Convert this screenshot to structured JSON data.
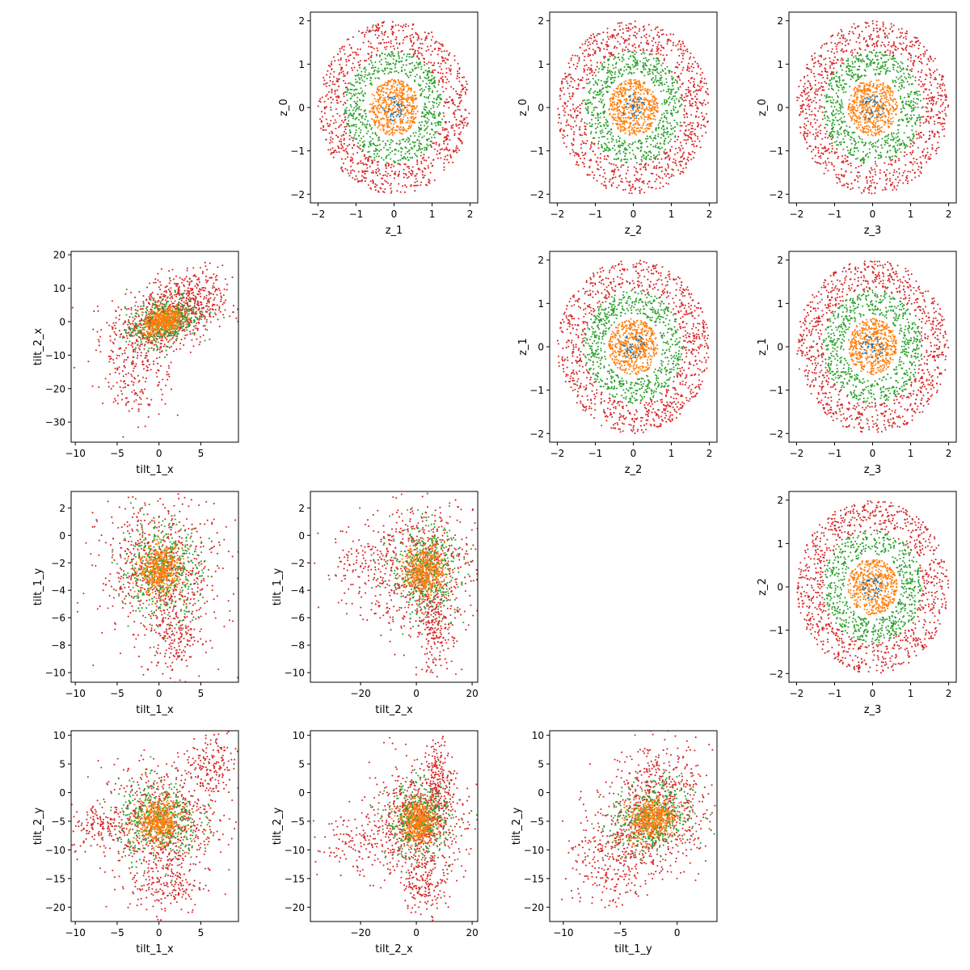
{
  "colors": {
    "red": "#d62728",
    "green": "#2ca02c",
    "orange": "#ff7f0e",
    "blue": "#1f77b4",
    "axes": "#000000",
    "background": "#ffffff"
  },
  "chart_data": [
    {
      "id": "p01",
      "type": "scatter",
      "row": 0,
      "col": 1,
      "xlabel": "z_1",
      "ylabel": "z_0",
      "xlim": [
        -2.2,
        2.2
      ],
      "ylim": [
        -2.2,
        2.2
      ],
      "xticks": [
        -2,
        -1,
        0,
        1,
        2
      ],
      "yticks": [
        -2,
        -1,
        0,
        1,
        2
      ],
      "gen": {
        "kind": "rings",
        "radii": [
          [
            1.3,
            2.0,
            900
          ],
          [
            0.75,
            1.3,
            650
          ],
          [
            0,
            0.65,
            500
          ],
          [
            0,
            0.3,
            40
          ]
        ]
      },
      "grid": false,
      "legend": "none"
    },
    {
      "id": "p02",
      "type": "scatter",
      "row": 0,
      "col": 2,
      "xlabel": "z_2",
      "ylabel": "z_0",
      "xlim": [
        -2.2,
        2.2
      ],
      "ylim": [
        -2.2,
        2.2
      ],
      "xticks": [
        -2,
        -1,
        0,
        1,
        2
      ],
      "yticks": [
        -2,
        -1,
        0,
        1,
        2
      ],
      "gen": {
        "kind": "rings",
        "radii": [
          [
            1.3,
            2.0,
            900
          ],
          [
            0.75,
            1.3,
            650
          ],
          [
            0,
            0.65,
            500
          ],
          [
            0,
            0.3,
            40
          ]
        ]
      },
      "grid": false,
      "legend": "none"
    },
    {
      "id": "p03",
      "type": "scatter",
      "row": 0,
      "col": 3,
      "xlabel": "z_3",
      "ylabel": "z_0",
      "xlim": [
        -2.2,
        2.2
      ],
      "ylim": [
        -2.2,
        2.2
      ],
      "xticks": [
        -2,
        -1,
        0,
        1,
        2
      ],
      "yticks": [
        -2,
        -1,
        0,
        1,
        2
      ],
      "gen": {
        "kind": "rings",
        "radii": [
          [
            1.3,
            2.0,
            900
          ],
          [
            0.75,
            1.3,
            650
          ],
          [
            0,
            0.65,
            500
          ],
          [
            0,
            0.3,
            40
          ]
        ]
      },
      "grid": false,
      "legend": "none"
    },
    {
      "id": "p12",
      "type": "scatter",
      "row": 1,
      "col": 2,
      "xlabel": "z_2",
      "ylabel": "z_1",
      "xlim": [
        -2.2,
        2.2
      ],
      "ylim": [
        -2.2,
        2.2
      ],
      "xticks": [
        -2,
        -1,
        0,
        1,
        2
      ],
      "yticks": [
        -2,
        -1,
        0,
        1,
        2
      ],
      "gen": {
        "kind": "rings",
        "radii": [
          [
            1.3,
            2.0,
            900
          ],
          [
            0.75,
            1.3,
            650
          ],
          [
            0,
            0.65,
            500
          ],
          [
            0,
            0.3,
            40
          ]
        ]
      },
      "grid": false,
      "legend": "none"
    },
    {
      "id": "p13",
      "type": "scatter",
      "row": 1,
      "col": 3,
      "xlabel": "z_3",
      "ylabel": "z_1",
      "xlim": [
        -2.2,
        2.2
      ],
      "ylim": [
        -2.2,
        2.2
      ],
      "xticks": [
        -2,
        -1,
        0,
        1,
        2
      ],
      "yticks": [
        -2,
        -1,
        0,
        1,
        2
      ],
      "gen": {
        "kind": "rings",
        "radii": [
          [
            1.3,
            2.0,
            900
          ],
          [
            0.75,
            1.3,
            650
          ],
          [
            0,
            0.65,
            500
          ],
          [
            0,
            0.3,
            40
          ]
        ]
      },
      "grid": false,
      "legend": "none"
    },
    {
      "id": "p23",
      "type": "scatter",
      "row": 2,
      "col": 3,
      "xlabel": "z_3",
      "ylabel": "z_2",
      "xlim": [
        -2.2,
        2.2
      ],
      "ylim": [
        -2.2,
        2.2
      ],
      "xticks": [
        -2,
        -1,
        0,
        1,
        2
      ],
      "yticks": [
        -2,
        -1,
        0,
        1,
        2
      ],
      "gen": {
        "kind": "rings",
        "radii": [
          [
            1.3,
            2.0,
            900
          ],
          [
            0.75,
            1.3,
            650
          ],
          [
            0,
            0.65,
            500
          ],
          [
            0,
            0.3,
            40
          ]
        ]
      },
      "grid": false,
      "legend": "none"
    },
    {
      "id": "p10",
      "type": "scatter",
      "row": 1,
      "col": 0,
      "xlabel": "tilt_1_x",
      "ylabel": "tilt_2_x",
      "xlim": [
        -10.5,
        9.5
      ],
      "ylim": [
        -36,
        21
      ],
      "xticks": [
        -10,
        -5,
        0,
        5
      ],
      "yticks": [
        -30,
        -20,
        -10,
        0,
        10,
        20
      ],
      "gen": {
        "kind": "blob",
        "center": [
          0.5,
          0
        ],
        "spread": [
          [
            3.2,
            5.0,
            600
          ],
          [
            2.2,
            3.5,
            450
          ],
          [
            1.2,
            2.0,
            450
          ]
        ],
        "skew": [
          [
            1.2,
            -2.4
          ],
          [
            0.9,
            -1.6
          ],
          [
            0.5,
            -0.6
          ]
        ],
        "tail": [
          [
            -2.5,
            -14,
            2.0,
            8,
            200
          ],
          [
            4,
            8,
            2.5,
            4,
            250
          ]
        ]
      },
      "grid": false,
      "legend": "none"
    },
    {
      "id": "p20",
      "type": "scatter",
      "row": 2,
      "col": 0,
      "xlabel": "tilt_1_x",
      "ylabel": "tilt_1_y",
      "xlim": [
        -10.5,
        9.5
      ],
      "ylim": [
        -10.7,
        3.2
      ],
      "xticks": [
        -10,
        -5,
        0,
        5
      ],
      "yticks": [
        -10,
        -8,
        -6,
        -4,
        -2,
        0,
        2
      ],
      "gen": {
        "kind": "blob",
        "center": [
          0.2,
          -2.5
        ],
        "spread": [
          [
            3.6,
            2.6,
            650
          ],
          [
            2.4,
            1.7,
            450
          ],
          [
            1.3,
            0.9,
            450
          ]
        ],
        "skew": [
          [
            0,
            0
          ],
          [
            0,
            0
          ],
          [
            0,
            0
          ]
        ],
        "tail": [
          [
            2,
            -7,
            1.6,
            1.6,
            200
          ]
        ]
      },
      "grid": false,
      "legend": "none"
    },
    {
      "id": "p21",
      "type": "scatter",
      "row": 2,
      "col": 1,
      "xlabel": "tilt_2_x",
      "ylabel": "tilt_1_y",
      "xlim": [
        -38,
        22
      ],
      "ylim": [
        -10.7,
        3.2
      ],
      "xticks": [
        -20,
        0,
        20
      ],
      "yticks": [
        -10,
        -8,
        -6,
        -4,
        -2,
        0,
        2
      ],
      "gen": {
        "kind": "blob",
        "center": [
          3,
          -2.5
        ],
        "spread": [
          [
            9,
            2.6,
            650
          ],
          [
            6,
            1.7,
            450
          ],
          [
            3.5,
            0.9,
            450
          ]
        ],
        "skew": [
          [
            0,
            0
          ],
          [
            0,
            0
          ],
          [
            0,
            0
          ]
        ],
        "tail": [
          [
            -18,
            -2.5,
            8,
            1.6,
            160
          ],
          [
            7,
            -7,
            3,
            1.5,
            160
          ]
        ]
      },
      "grid": false,
      "legend": "none"
    },
    {
      "id": "p30",
      "type": "scatter",
      "row": 3,
      "col": 0,
      "xlabel": "tilt_1_x",
      "ylabel": "tilt_2_y",
      "xlim": [
        -10.5,
        9.5
      ],
      "ylim": [
        -22.5,
        10.8
      ],
      "xticks": [
        -10,
        -5,
        0,
        5
      ],
      "yticks": [
        -20,
        -15,
        -10,
        -5,
        0,
        5,
        10
      ],
      "gen": {
        "kind": "blob",
        "center": [
          0,
          -5
        ],
        "spread": [
          [
            3.5,
            5.0,
            650
          ],
          [
            2.4,
            3.4,
            450
          ],
          [
            1.3,
            1.8,
            450
          ]
        ],
        "skew": [
          [
            0,
            0
          ],
          [
            0,
            0
          ],
          [
            0,
            0
          ]
        ],
        "tail": [
          [
            6,
            4,
            1.6,
            3,
            180
          ],
          [
            1,
            -16,
            2.2,
            2.6,
            180
          ],
          [
            -7,
            -6,
            1.8,
            2,
            120
          ]
        ]
      },
      "grid": false,
      "legend": "none"
    },
    {
      "id": "p31",
      "type": "scatter",
      "row": 3,
      "col": 1,
      "xlabel": "tilt_2_x",
      "ylabel": "tilt_2_y",
      "xlim": [
        -38,
        22
      ],
      "ylim": [
        -22.5,
        10.8
      ],
      "xticks": [
        -20,
        0,
        20
      ],
      "yticks": [
        -20,
        -15,
        -10,
        -5,
        0,
        5,
        10
      ],
      "gen": {
        "kind": "blob",
        "center": [
          1,
          -5
        ],
        "spread": [
          [
            8.5,
            4.8,
            650
          ],
          [
            5.8,
            3.2,
            450
          ],
          [
            3.2,
            1.8,
            450
          ]
        ],
        "skew": [
          [
            0,
            0
          ],
          [
            0,
            0
          ],
          [
            0,
            0
          ]
        ],
        "tail": [
          [
            -20,
            -9,
            8,
            3,
            150
          ],
          [
            8,
            2,
            2.2,
            3.5,
            180
          ],
          [
            3,
            -16,
            4,
            2.5,
            150
          ]
        ]
      },
      "grid": false,
      "legend": "none"
    },
    {
      "id": "p32",
      "type": "scatter",
      "row": 3,
      "col": 2,
      "xlabel": "tilt_1_y",
      "ylabel": "tilt_2_y",
      "xlim": [
        -11.2,
        3.5
      ],
      "ylim": [
        -22.5,
        10.8
      ],
      "xticks": [
        -10,
        -5,
        0
      ],
      "yticks": [
        -20,
        -15,
        -10,
        -5,
        0,
        5,
        10
      ],
      "gen": {
        "kind": "blob",
        "center": [
          -2.2,
          -4.5
        ],
        "spread": [
          [
            2.6,
            4.8,
            650
          ],
          [
            1.8,
            3.2,
            450
          ],
          [
            1.0,
            1.8,
            450
          ]
        ],
        "skew": [
          [
            0.4,
            1.2
          ],
          [
            0.3,
            0.9
          ],
          [
            0.2,
            0.5
          ]
        ],
        "tail": [
          [
            -6,
            -13,
            1.8,
            4,
            200
          ],
          [
            -2,
            4,
            1.5,
            3,
            120
          ]
        ]
      },
      "grid": false,
      "legend": "none"
    }
  ]
}
